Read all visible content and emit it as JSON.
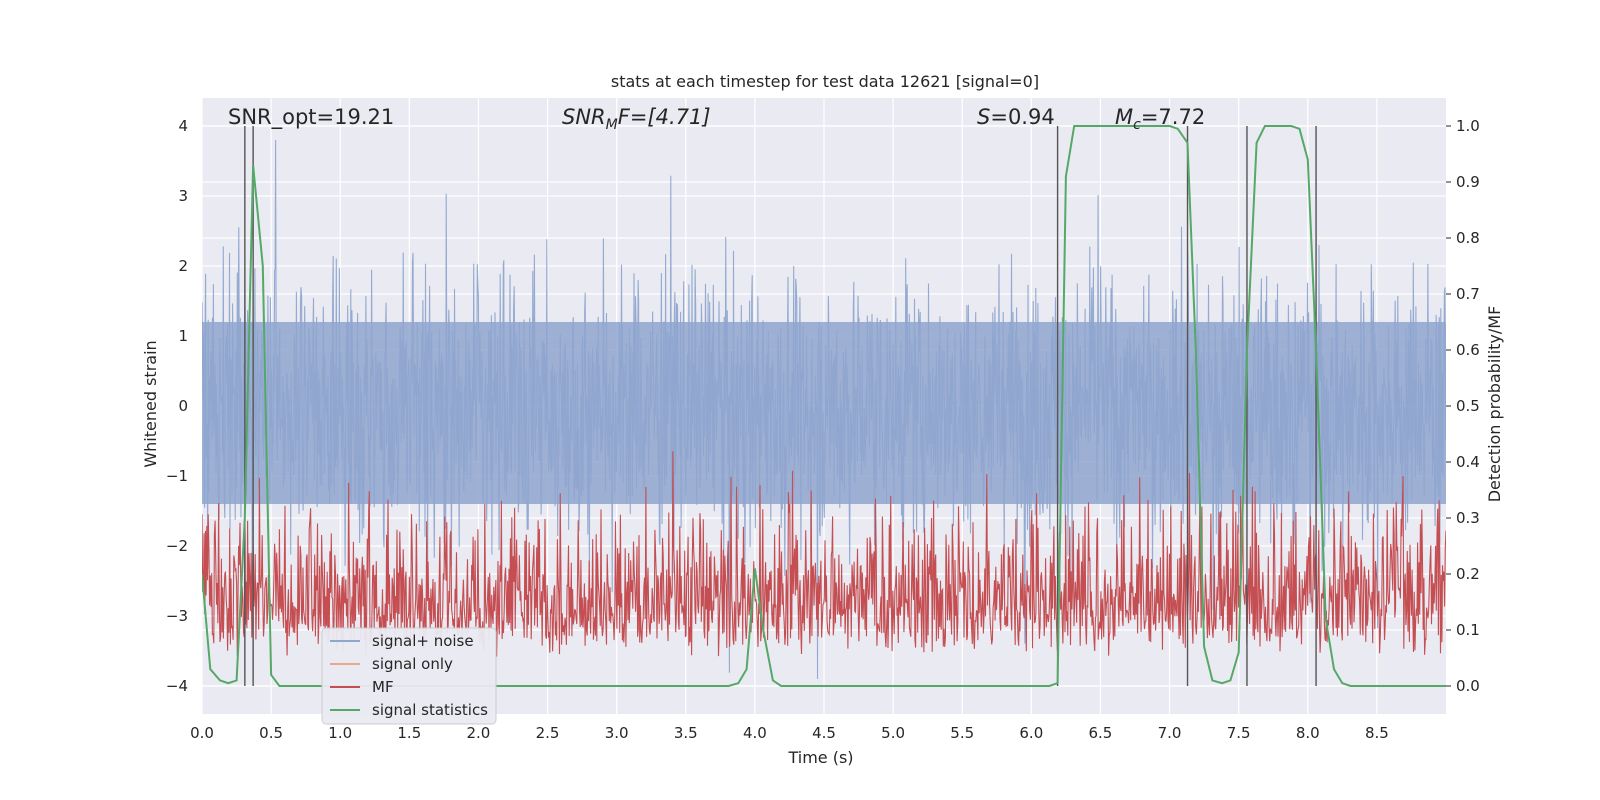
{
  "chart_data": {
    "type": "line",
    "title": "stats at each timestep for test data 12621 [signal=0]",
    "xlabel": "Time (s)",
    "ylabel": "Whitened strain",
    "y2label": "Detection probability/MF",
    "xlim": [
      0,
      9.0
    ],
    "ylim": [
      -4.4,
      4.4
    ],
    "y2lim": [
      -0.05,
      1.05
    ],
    "x_ticks": [
      "0.0",
      "0.5",
      "1.0",
      "1.5",
      "2.0",
      "2.5",
      "3.0",
      "3.5",
      "4.0",
      "4.5",
      "5.0",
      "5.5",
      "6.0",
      "6.5",
      "7.0",
      "7.5",
      "8.0",
      "8.5"
    ],
    "y_ticks": [
      "4",
      "3",
      "2",
      "1",
      "0",
      "−1",
      "−2",
      "−3",
      "−4"
    ],
    "y2_ticks": [
      "1.0",
      "0.9",
      "0.8",
      "0.7",
      "0.6",
      "0.5",
      "0.4",
      "0.3",
      "0.2",
      "0.1",
      "0.0"
    ],
    "grid": true,
    "legend_position": "lower-left",
    "annotations": {
      "snr_opt": "SNR_opt=19.21",
      "snr_mf_main": "SNR",
      "snr_mf_sub": "M",
      "snr_mf_rest": "F=[4.71]",
      "s_sym": "S",
      "s_val": "=0.94",
      "mc_main": "M",
      "mc_sub": "c",
      "mc_val": "=7.72"
    },
    "series": [
      {
        "name": "signal+ noise",
        "color": "#8fa6cf",
        "envelope_low": -2.0,
        "envelope_high": 2.0
      },
      {
        "name": "signal only",
        "color": "#e8a88c",
        "values": []
      },
      {
        "name": "MF",
        "color": "#c44e52",
        "range": [
          0.05,
          0.65
        ]
      },
      {
        "name": "signal statistics",
        "color": "#55a868",
        "x": [
          0.0,
          0.06,
          0.13,
          0.19,
          0.25,
          0.31,
          0.37,
          0.44,
          0.5,
          0.56,
          0.62,
          0.69,
          0.75,
          3.81,
          3.88,
          3.94,
          4.0,
          4.06,
          4.13,
          4.19,
          4.25,
          4.31,
          6.13,
          6.19,
          6.25,
          6.31,
          6.38,
          6.44,
          6.5,
          7.0,
          7.06,
          7.13,
          7.19,
          7.25,
          7.31,
          7.38,
          7.44,
          7.5,
          7.56,
          7.63,
          7.69,
          7.75,
          7.81,
          7.88,
          7.94,
          8.0,
          8.06,
          8.13,
          8.19,
          8.25,
          8.31,
          8.38,
          8.44,
          8.5,
          8.56,
          9.0
        ],
        "y": [
          0.2,
          0.03,
          0.01,
          0.005,
          0.01,
          0.3,
          0.93,
          0.75,
          0.02,
          0.0,
          0.0,
          0.0,
          0.0,
          0.0,
          0.005,
          0.03,
          0.21,
          0.1,
          0.01,
          0.0,
          0.0,
          0.0,
          0.0,
          0.005,
          0.91,
          1.0,
          1.0,
          1.0,
          1.0,
          1.0,
          0.995,
          0.97,
          0.6,
          0.07,
          0.01,
          0.005,
          0.01,
          0.06,
          0.6,
          0.97,
          1.0,
          1.0,
          1.0,
          1.0,
          0.995,
          0.94,
          0.6,
          0.12,
          0.03,
          0.005,
          0.0,
          0.0,
          0.0,
          0.0,
          0.0,
          0.0
        ]
      }
    ],
    "vlines_x": [
      0.31,
      0.37,
      6.19,
      7.13,
      7.56,
      8.06
    ],
    "colors": {
      "plot_bg": "#eaeaf2",
      "grid": "#ffffff",
      "vline": "#555555"
    }
  }
}
